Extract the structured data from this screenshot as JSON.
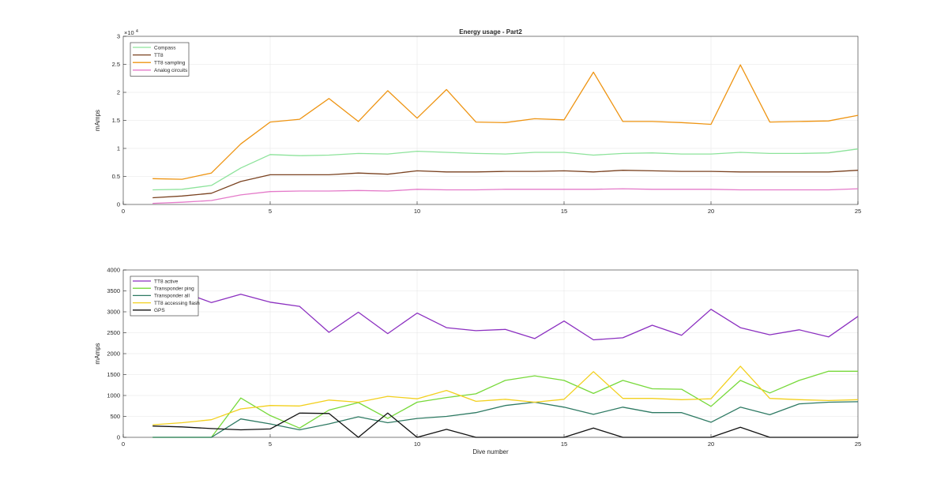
{
  "chart_data": [
    {
      "type": "line",
      "title": "Energy usage - Part2",
      "xlabel": "",
      "ylabel": "mAmps",
      "xlim": [
        0,
        25
      ],
      "ylim": [
        0,
        30000
      ],
      "y_exponent_label": "×10",
      "y_exponent_power": "4",
      "xticks": [
        0,
        5,
        10,
        15,
        20,
        25
      ],
      "yticks": [
        0,
        5000,
        10000,
        15000,
        20000,
        25000,
        30000
      ],
      "ytick_labels": [
        "0",
        "0.5",
        "1",
        "1.5",
        "2",
        "2.5",
        "3"
      ],
      "grid": true,
      "legend_position": "top-left",
      "x": [
        1,
        2,
        3,
        4,
        5,
        6,
        7,
        8,
        9,
        10,
        11,
        12,
        13,
        14,
        15,
        16,
        17,
        18,
        19,
        20,
        21,
        22,
        23,
        24,
        25
      ],
      "series": [
        {
          "name": "Compass",
          "color": "#8de39b",
          "values": [
            2600,
            2700,
            3400,
            6500,
            8900,
            8700,
            8800,
            9100,
            9000,
            9500,
            9300,
            9100,
            9000,
            9300,
            9300,
            8800,
            9100,
            9200,
            9000,
            9000,
            9300,
            9100,
            9100,
            9200,
            9900
          ]
        },
        {
          "name": "TT8",
          "color": "#7a4220",
          "values": [
            1200,
            1500,
            2000,
            4100,
            5300,
            5300,
            5300,
            5600,
            5400,
            6000,
            5800,
            5800,
            5900,
            5900,
            6000,
            5800,
            6100,
            6000,
            5900,
            5900,
            5800,
            5800,
            5800,
            5800,
            6100
          ]
        },
        {
          "name": "TT8 sampling",
          "color": "#ee9412",
          "values": [
            4600,
            4500,
            5600,
            10800,
            14700,
            15200,
            18900,
            14800,
            20300,
            15400,
            20500,
            14700,
            14600,
            15300,
            15100,
            23600,
            14800,
            14800,
            14600,
            14300,
            24900,
            14700,
            14800,
            14900,
            15900
          ]
        },
        {
          "name": "Analog circuits",
          "color": "#e47ac9",
          "values": [
            200,
            400,
            700,
            1700,
            2300,
            2400,
            2400,
            2500,
            2400,
            2700,
            2600,
            2600,
            2700,
            2700,
            2700,
            2700,
            2800,
            2700,
            2700,
            2700,
            2600,
            2600,
            2600,
            2600,
            2800
          ]
        }
      ]
    },
    {
      "type": "line",
      "title": "",
      "xlabel": "Dive number",
      "ylabel": "mAmps",
      "xlim": [
        0,
        25
      ],
      "ylim": [
        0,
        4000
      ],
      "xticks": [
        0,
        5,
        10,
        15,
        20,
        25
      ],
      "yticks": [
        0,
        500,
        1000,
        1500,
        2000,
        2500,
        3000,
        3500,
        4000
      ],
      "ytick_labels": [
        "0",
        "500",
        "1000",
        "1500",
        "2000",
        "2500",
        "3000",
        "3500",
        "4000"
      ],
      "grid": true,
      "legend_position": "top-left",
      "x": [
        1,
        2,
        3,
        4,
        5,
        6,
        7,
        8,
        9,
        10,
        11,
        12,
        13,
        14,
        15,
        16,
        17,
        18,
        19,
        20,
        21,
        22,
        23,
        24,
        25
      ],
      "series": [
        {
          "name": "TT8 active",
          "color": "#8b2fc0",
          "values": [
            3550,
            3480,
            3220,
            3420,
            3230,
            3130,
            2510,
            2990,
            2480,
            2970,
            2620,
            2550,
            2580,
            2360,
            2780,
            2330,
            2380,
            2680,
            2440,
            3060,
            2620,
            2450,
            2570,
            2400,
            2890
          ]
        },
        {
          "name": "Transponder ping",
          "color": "#77d93a",
          "values": [
            0,
            0,
            0,
            940,
            520,
            220,
            650,
            830,
            450,
            840,
            950,
            1040,
            1360,
            1470,
            1360,
            1050,
            1360,
            1160,
            1150,
            740,
            1360,
            1060,
            1360,
            1580,
            1580
          ]
        },
        {
          "name": "Transponder all",
          "color": "#2e7a63",
          "values": [
            0,
            0,
            0,
            440,
            320,
            180,
            320,
            490,
            350,
            450,
            500,
            590,
            760,
            840,
            720,
            550,
            720,
            590,
            590,
            360,
            720,
            540,
            800,
            840,
            850
          ]
        },
        {
          "name": "TT8 accessing flash",
          "color": "#f2d01e",
          "values": [
            300,
            350,
            420,
            680,
            760,
            750,
            890,
            840,
            980,
            920,
            1120,
            860,
            910,
            840,
            910,
            1570,
            930,
            930,
            900,
            920,
            1700,
            930,
            900,
            880,
            900
          ]
        },
        {
          "name": "GPS",
          "color": "#111111",
          "values": [
            270,
            250,
            210,
            180,
            200,
            580,
            570,
            0,
            580,
            0,
            190,
            0,
            0,
            0,
            0,
            220,
            0,
            0,
            0,
            0,
            240,
            0,
            0,
            0,
            0
          ]
        }
      ]
    }
  ]
}
